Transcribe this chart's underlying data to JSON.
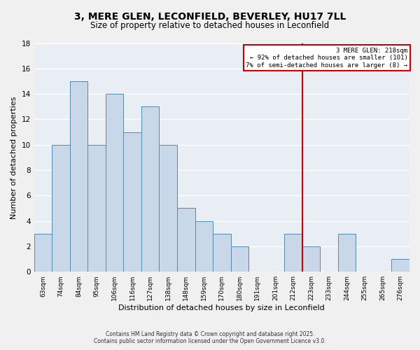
{
  "title": "3, MERE GLEN, LECONFIELD, BEVERLEY, HU17 7LL",
  "subtitle": "Size of property relative to detached houses in Leconfield",
  "xlabel": "Distribution of detached houses by size in Leconfield",
  "ylabel": "Number of detached properties",
  "bar_labels": [
    "63sqm",
    "74sqm",
    "84sqm",
    "95sqm",
    "106sqm",
    "116sqm",
    "127sqm",
    "138sqm",
    "148sqm",
    "159sqm",
    "170sqm",
    "180sqm",
    "191sqm",
    "201sqm",
    "212sqm",
    "223sqm",
    "233sqm",
    "244sqm",
    "255sqm",
    "265sqm",
    "276sqm"
  ],
  "bar_values": [
    3,
    10,
    15,
    10,
    14,
    11,
    13,
    10,
    5,
    4,
    3,
    2,
    0,
    0,
    3,
    2,
    0,
    3,
    0,
    0,
    1
  ],
  "bar_color": "#c8d8e8",
  "bar_edge_color": "#5588aa",
  "ylim": [
    0,
    18
  ],
  "yticks": [
    0,
    2,
    4,
    6,
    8,
    10,
    12,
    14,
    16,
    18
  ],
  "property_line_x": 14.5,
  "property_line_color": "#cc0000",
  "annotation_title": "3 MERE GLEN: 218sqm",
  "annotation_line1": "← 92% of detached houses are smaller (101)",
  "annotation_line2": "7% of semi-detached houses are larger (8) →",
  "annotation_box_color": "#ffffff",
  "annotation_box_edge": "#cc0000",
  "footer1": "Contains HM Land Registry data © Crown copyright and database right 2025.",
  "footer2": "Contains public sector information licensed under the Open Government Licence v3.0.",
  "background_color": "#f0f0f0",
  "plot_bg_color": "#e8eef4",
  "grid_color": "#ffffff"
}
